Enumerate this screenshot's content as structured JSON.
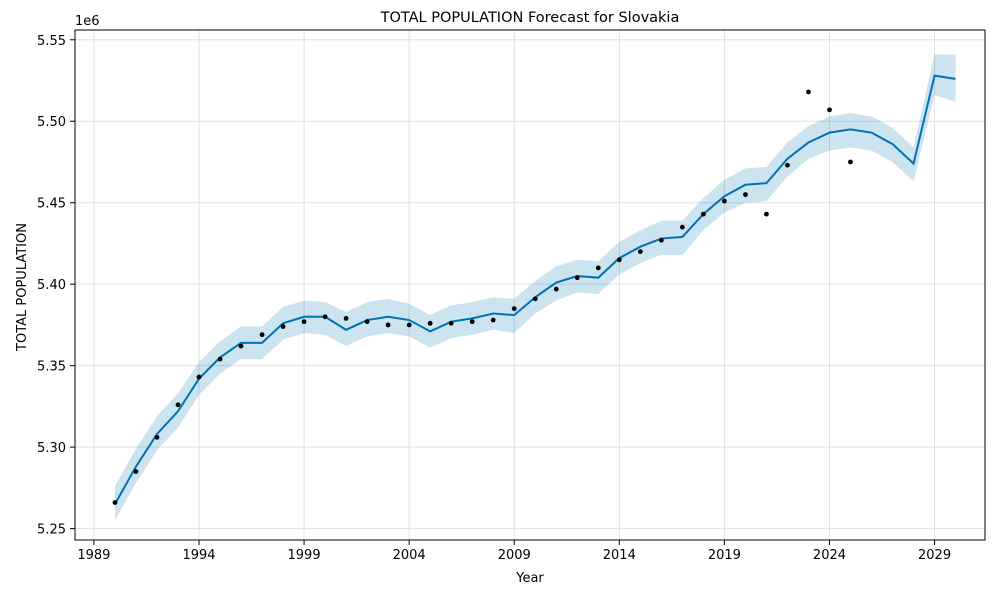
{
  "chart_data": {
    "type": "line",
    "title": "TOTAL POPULATION Forecast for Slovakia",
    "xlabel": "Year",
    "ylabel": "TOTAL POPULATION",
    "y_offset_label": "1e6",
    "xlim": [
      1988.1,
      2031.4
    ],
    "ylim": [
      5.243,
      5.556
    ],
    "x_ticks": [
      1989,
      1994,
      1999,
      2004,
      2009,
      2014,
      2019,
      2024,
      2029
    ],
    "x_tick_labels": [
      "1989",
      "1994",
      "1999",
      "2004",
      "2009",
      "2014",
      "2019",
      "2024",
      "2029"
    ],
    "y_ticks": [
      5.25,
      5.3,
      5.35,
      5.4,
      5.45,
      5.5,
      5.55
    ],
    "y_tick_labels": [
      "5.25",
      "5.30",
      "5.35",
      "5.40",
      "5.45",
      "5.50",
      "5.55"
    ],
    "grid": true,
    "colors": {
      "forecast_line": "#0072b2",
      "uncertainty_band": "#0072b2",
      "observed_points": "#000000",
      "grid": "#e0e0e0"
    },
    "series": [
      {
        "type": "points",
        "x": [
          1990,
          1991,
          1992,
          1993,
          1994,
          1995,
          1996,
          1997,
          1998,
          1999,
          2000,
          2001,
          2002,
          2003,
          2004,
          2005,
          2006,
          2007,
          2008,
          2009,
          2010,
          2011,
          2012,
          2013,
          2014,
          2015,
          2016,
          2017,
          2018,
          2019,
          2020,
          2021,
          2022,
          2023,
          2024,
          2025
        ],
        "y": [
          5.266,
          5.285,
          5.306,
          5.326,
          5.343,
          5.354,
          5.362,
          5.369,
          5.374,
          5.377,
          5.38,
          5.379,
          5.377,
          5.375,
          5.375,
          5.376,
          5.376,
          5.377,
          5.378,
          5.385,
          5.391,
          5.397,
          5.404,
          5.41,
          5.415,
          5.42,
          5.427,
          5.435,
          5.443,
          5.451,
          5.455,
          5.443,
          5.473,
          5.518,
          5.507,
          5.475
        ]
      },
      {
        "type": "forecast",
        "x": [
          1990,
          1991,
          1992,
          1993,
          1994,
          1995,
          1996,
          1997,
          1998,
          1999,
          2000,
          2001,
          2002,
          2003,
          2004,
          2005,
          2006,
          2007,
          2008,
          2009,
          2010,
          2011,
          2012,
          2013,
          2014,
          2015,
          2016,
          2017,
          2018,
          2019,
          2020,
          2021,
          2022,
          2023,
          2024,
          2025,
          2026,
          2027,
          2028,
          2029,
          2030
        ],
        "yhat": [
          5.265,
          5.288,
          5.308,
          5.322,
          5.342,
          5.355,
          5.364,
          5.364,
          5.376,
          5.38,
          5.38,
          5.372,
          5.378,
          5.38,
          5.378,
          5.371,
          5.377,
          5.379,
          5.382,
          5.381,
          5.392,
          5.401,
          5.405,
          5.404,
          5.416,
          5.423,
          5.428,
          5.429,
          5.443,
          5.454,
          5.461,
          5.462,
          5.477,
          5.487,
          5.493,
          5.495,
          5.493,
          5.486,
          5.474,
          5.528,
          5.526
        ],
        "lower": [
          5.255,
          5.278,
          5.298,
          5.312,
          5.332,
          5.345,
          5.354,
          5.354,
          5.366,
          5.37,
          5.369,
          5.362,
          5.368,
          5.37,
          5.368,
          5.361,
          5.367,
          5.369,
          5.372,
          5.37,
          5.382,
          5.39,
          5.395,
          5.394,
          5.406,
          5.413,
          5.418,
          5.418,
          5.433,
          5.444,
          5.45,
          5.451,
          5.466,
          5.477,
          5.482,
          5.484,
          5.482,
          5.475,
          5.463,
          5.516,
          5.512
        ],
        "upper": [
          5.276,
          5.299,
          5.319,
          5.333,
          5.352,
          5.365,
          5.374,
          5.374,
          5.386,
          5.39,
          5.389,
          5.383,
          5.389,
          5.391,
          5.388,
          5.381,
          5.387,
          5.389,
          5.392,
          5.391,
          5.402,
          5.411,
          5.415,
          5.414,
          5.426,
          5.433,
          5.439,
          5.439,
          5.453,
          5.464,
          5.471,
          5.472,
          5.487,
          5.497,
          5.503,
          5.505,
          5.503,
          5.496,
          5.484,
          5.541,
          5.541
        ]
      }
    ]
  }
}
